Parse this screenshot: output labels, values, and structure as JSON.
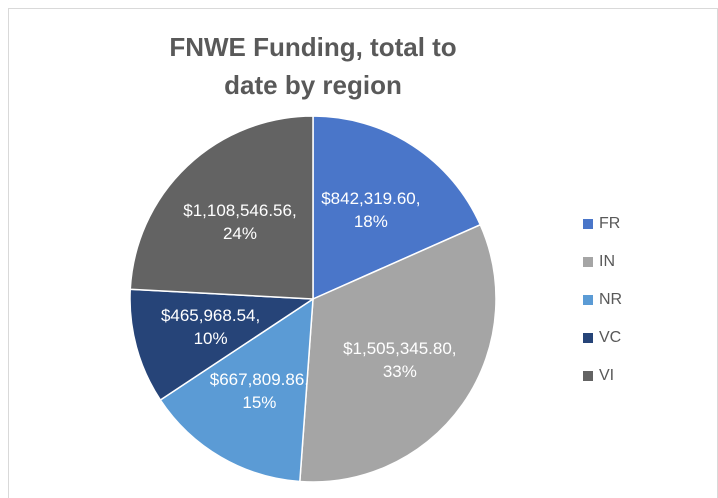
{
  "chart_data": {
    "type": "pie",
    "title": "FNWE Funding, total to date by region",
    "categories": [
      "FR",
      "IN",
      "NR",
      "VC",
      "VI"
    ],
    "values": [
      842319.6,
      1505345.8,
      667809.86,
      465968.54,
      1108546.56
    ],
    "value_labels": [
      "$842,319.60, 18%",
      "$1,505,345.80, 33%",
      "$667,809.86, 15%",
      "$465,968.54, 10%",
      "$1,108,546.56, 24%"
    ],
    "colors": [
      "#4a76c9",
      "#a5a5a5",
      "#5b9bd5",
      "#264478",
      "#636363"
    ],
    "legend": "right"
  }
}
